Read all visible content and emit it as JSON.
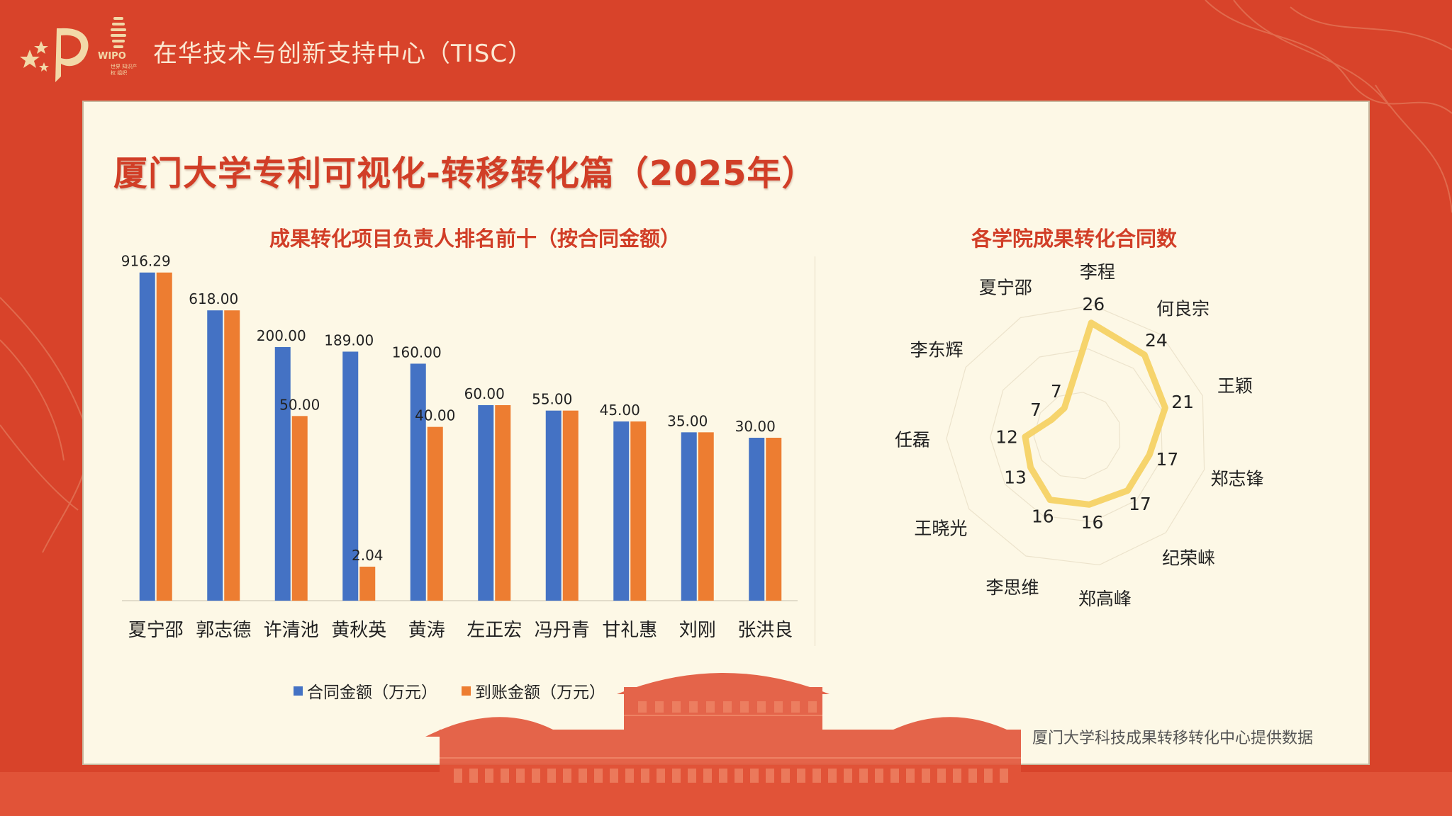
{
  "header": {
    "org_title": "在华技术与创新支持中心（TISC）",
    "wipo_label": "WIPO",
    "wipo_sub": "世界 知识产权 组织"
  },
  "main_title": "厦门大学专利可视化-转移转化篇（2025年）",
  "source_note": "厦门大学科技成果转移转化中心提供数据",
  "colors": {
    "background": "#d8432a",
    "panel": "#fdf8e6",
    "title_red": "#d13e27",
    "contract_blue": "#4472c4",
    "received_orange": "#ed7d31",
    "radar_yellow": "#f6d46c"
  },
  "chart_data": [
    {
      "type": "bar",
      "title": "成果转化项目负责人排名前十（按合同金额）",
      "categories": [
        "夏宁邵",
        "郭志德",
        "许清池",
        "黄秋英",
        "黄涛",
        "左正宏",
        "冯丹青",
        "甘礼惠",
        "刘刚",
        "张洪良"
      ],
      "series": [
        {
          "name": "合同金额（万元）",
          "values": [
            916.29,
            618.0,
            200.0,
            189.0,
            160.0,
            60.0,
            55.0,
            45.0,
            35.0,
            30.0
          ],
          "labels": [
            "916.29",
            "618.00",
            "200.00",
            "189.00",
            "160.00",
            "60.00",
            "55.00",
            "45.00",
            "35.00",
            "30.00"
          ]
        },
        {
          "name": "到账金额（万元）",
          "values": [
            916.29,
            618.0,
            50.0,
            2.04,
            40.0,
            60.0,
            55.0,
            45.0,
            35.0,
            30.0
          ],
          "labels": [
            "",
            "",
            "50.00",
            "2.04",
            "40.00",
            "",
            "",
            "",
            "",
            ""
          ]
        }
      ],
      "axis_scale": "broken (non-linear)",
      "legend_position": "bottom",
      "grid": false
    },
    {
      "type": "radar",
      "title": "各学院成果转化合同数",
      "categories": [
        "李程",
        "何良宗",
        "王颖",
        "郑志锋",
        "纪荣崃",
        "郑高峰",
        "李思维",
        "王晓光",
        "任磊",
        "李东辉",
        "夏宁邵"
      ],
      "values": [
        26,
        24,
        21,
        17,
        17,
        16,
        16,
        13,
        12,
        7,
        7
      ],
      "value_labels": [
        "26",
        "24",
        "21",
        "17",
        "17",
        "16",
        "16",
        "13",
        "12",
        "7",
        "7"
      ],
      "rmax": 30,
      "grid": true
    }
  ]
}
